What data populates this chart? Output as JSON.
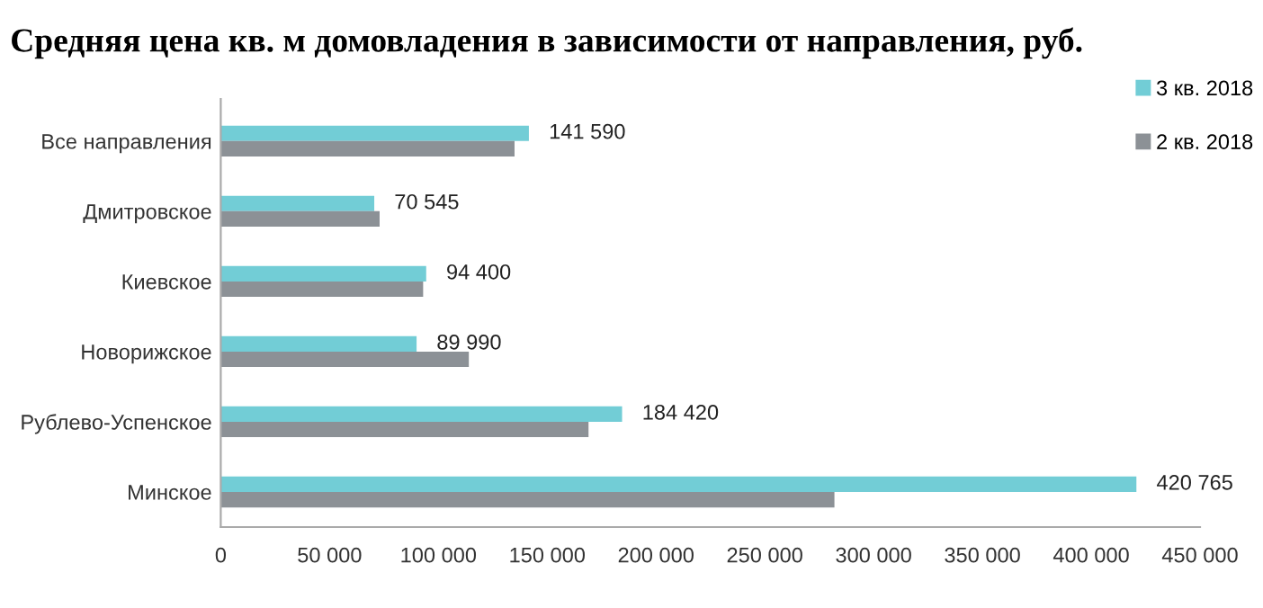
{
  "chart_data": {
    "type": "bar",
    "orientation": "horizontal",
    "title": "Средняя цена кв. м домовладения в зависимости от направления, руб.",
    "categories": [
      "Все направления",
      "Дмитровское",
      "Киевское",
      "Новорижское",
      "Рублево-Успенское",
      "Минское"
    ],
    "series": [
      {
        "name": "3 кв. 2018",
        "color": "#72cdd6",
        "values": [
          141590,
          70545,
          94400,
          89990,
          184420,
          420765
        ],
        "value_labels": [
          "141 590",
          "70 545",
          "94 400",
          "89 990",
          "184 420",
          "420 765"
        ]
      },
      {
        "name": "2 кв. 2018",
        "color": "#8c9196",
        "values": [
          135000,
          73000,
          93000,
          114000,
          169000,
          282000
        ]
      }
    ],
    "xlim": [
      0,
      450000
    ],
    "xticks": [
      {
        "value": 0,
        "label": "0"
      },
      {
        "value": 50000,
        "label": "50 000"
      },
      {
        "value": 100000,
        "label": "100 000"
      },
      {
        "value": 150000,
        "label": "150 000"
      },
      {
        "value": 200000,
        "label": "200 000"
      },
      {
        "value": 250000,
        "label": "250 000"
      },
      {
        "value": 300000,
        "label": "300 000"
      },
      {
        "value": 350000,
        "label": "350 000"
      },
      {
        "value": 400000,
        "label": "400 000"
      },
      {
        "value": 450000,
        "label": "450 000"
      }
    ],
    "grid": false,
    "legend": "top right"
  }
}
